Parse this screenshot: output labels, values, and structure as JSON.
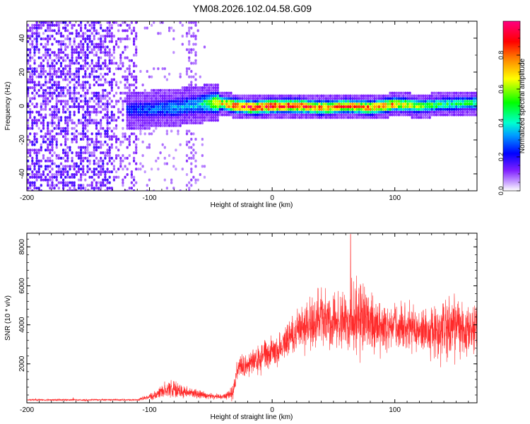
{
  "title": "YM08.2026.102.04.58.G09",
  "chart_data": [
    {
      "type": "heatmap",
      "name": "spectrogram",
      "xlabel": "Height of straight line (km)",
      "ylabel": "Frequency (Hz)",
      "xlim": [
        -200,
        167
      ],
      "ylim": [
        -50,
        50
      ],
      "xticks": [
        -200,
        -100,
        0,
        100
      ],
      "yticks": [
        -40,
        -20,
        0,
        20,
        40
      ],
      "colorbar": {
        "label": "Normalized spectral amplitude",
        "range": [
          0,
          1
        ],
        "ticks": [
          0.0,
          0.2,
          0.4,
          0.6,
          0.8
        ],
        "colors": [
          "#ffffff",
          "#c080ff",
          "#6000ff",
          "#0000ff",
          "#00e0ff",
          "#00ff40",
          "#ffff00",
          "#ff8000",
          "#ff0000",
          "#ff0080"
        ]
      },
      "noise_region_end_km": -110,
      "signal_onset_km": -120,
      "signal_trace": {
        "x": [
          -120,
          -100,
          -80,
          -60,
          -45,
          -30,
          -15,
          0,
          20,
          40,
          60,
          80,
          100,
          120,
          140,
          167
        ],
        "freq": [
          -2,
          -2,
          -1,
          1,
          2,
          0,
          -1,
          0,
          0,
          -1,
          0,
          -1,
          1,
          0,
          1,
          2
        ],
        "peak_amplitude": [
          0.25,
          0.3,
          0.35,
          0.4,
          0.7,
          0.9,
          0.95,
          0.95,
          0.9,
          0.85,
          0.85,
          0.85,
          0.8,
          0.6,
          0.5,
          0.5
        ]
      }
    },
    {
      "type": "line",
      "name": "snr",
      "xlabel": "Height of straight line (km)",
      "ylabel": "SNR (10 * v/v)",
      "xlim": [
        -200,
        167
      ],
      "ylim": [
        0,
        8700
      ],
      "xticks": [
        -200,
        -100,
        0,
        100
      ],
      "yticks": [
        2000,
        4000,
        6000,
        8000
      ],
      "color": "#ff0000",
      "envelope": {
        "x": [
          -200,
          -110,
          -100,
          -90,
          -80,
          -70,
          -60,
          -50,
          -40,
          -32,
          -28,
          -20,
          -10,
          0,
          10,
          20,
          30,
          40,
          50,
          60,
          70,
          80,
          90,
          100,
          110,
          120,
          130,
          140,
          150,
          160,
          167
        ],
        "mean": [
          150,
          150,
          300,
          600,
          700,
          550,
          450,
          350,
          300,
          500,
          1800,
          2000,
          2200,
          2600,
          3000,
          3600,
          4000,
          4300,
          4200,
          4100,
          4400,
          4200,
          4000,
          3900,
          3800,
          3600,
          3700,
          3800,
          3900,
          3700,
          3800
        ],
        "spread": [
          60,
          60,
          200,
          450,
          650,
          400,
          300,
          200,
          150,
          500,
          800,
          900,
          1000,
          1100,
          1200,
          1500,
          1700,
          2000,
          1800,
          1900,
          2600,
          2100,
          1700,
          1600,
          1500,
          1400,
          1800,
          2000,
          1900,
          1800,
          2000
        ]
      },
      "peak": {
        "x": 64,
        "y": 8650
      }
    }
  ]
}
